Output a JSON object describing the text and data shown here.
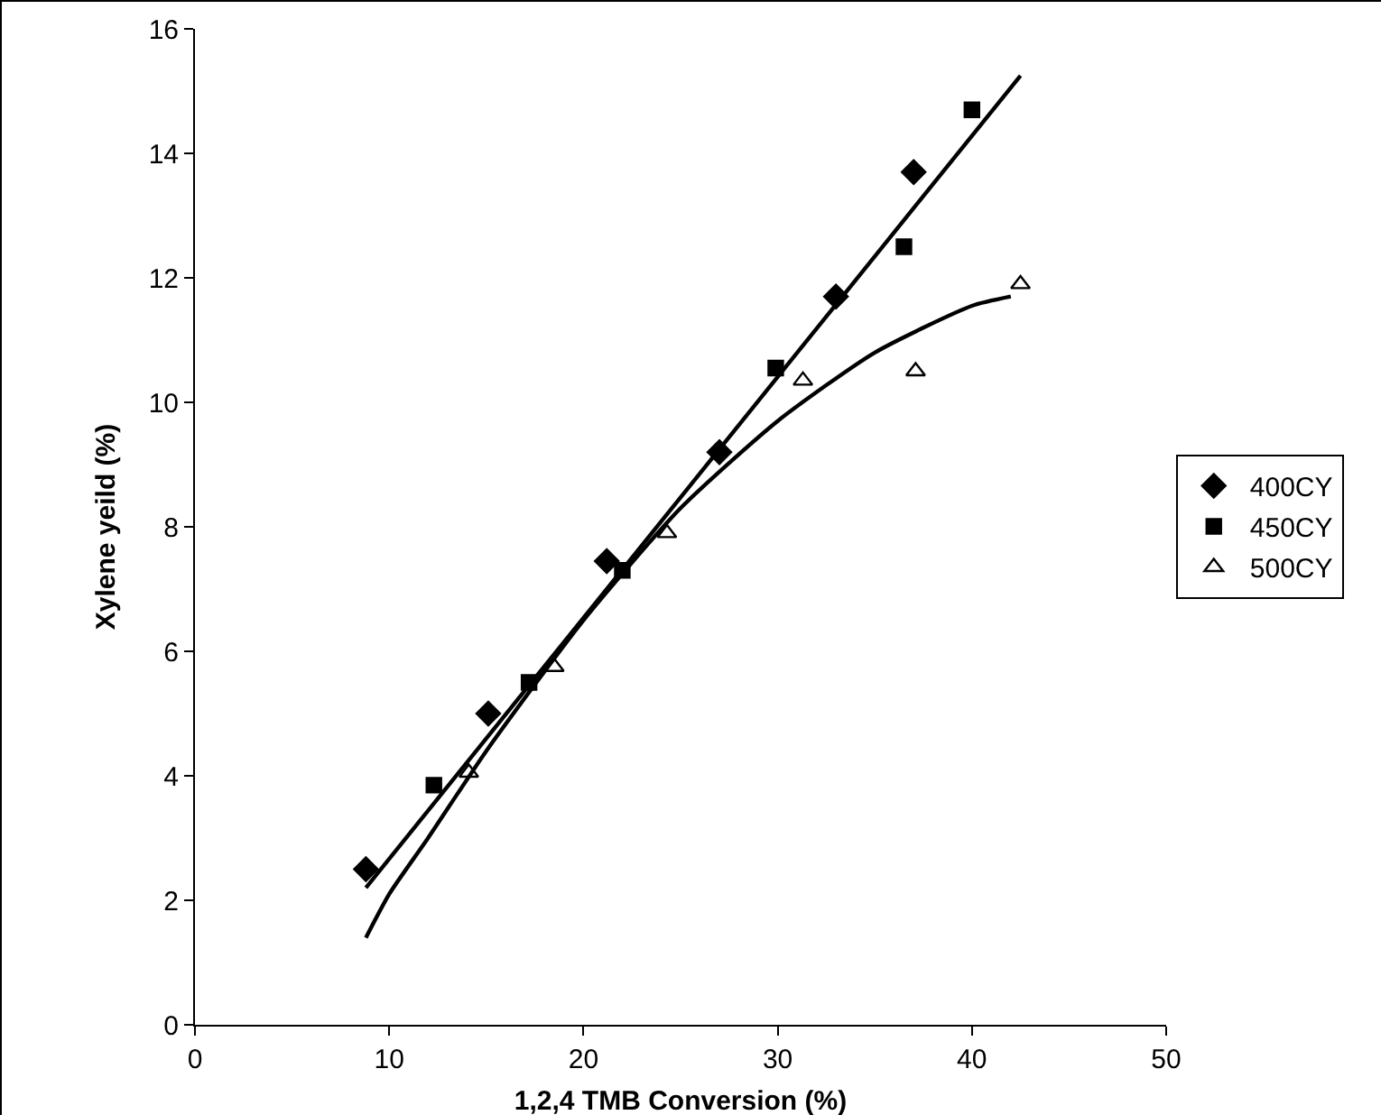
{
  "chart_data": {
    "type": "scatter",
    "xlabel": "1,2,4 TMB Conversion (%)",
    "ylabel": "Xylene yeild (%)",
    "xlim": [
      0,
      50
    ],
    "xticks": [
      0,
      10,
      20,
      30,
      40,
      50
    ],
    "ylim": [
      0,
      16
    ],
    "yticks": [
      0,
      2,
      4,
      6,
      8,
      10,
      12,
      14,
      16
    ],
    "grid": false,
    "legend": "right",
    "series": [
      {
        "name": "400CY",
        "color": "#000000",
        "marker": "diamond",
        "x": [
          8.8,
          15.1,
          21.2,
          27,
          33,
          37
        ],
        "values": [
          2.5,
          5.0,
          7.45,
          9.2,
          11.7,
          13.7
        ]
      },
      {
        "name": "450CY",
        "color": "#000000",
        "marker": "square",
        "x": [
          12.3,
          17.2,
          22,
          29.9,
          36.5,
          40
        ],
        "values": [
          3.85,
          5.5,
          7.3,
          10.55,
          12.5,
          14.7
        ]
      },
      {
        "name": "500CY",
        "color": "#000000",
        "marker": "triangle",
        "x": [
          14.1,
          18.5,
          24.3,
          31.3,
          37.1,
          42.5
        ],
        "values": [
          4.05,
          5.75,
          7.9,
          10.35,
          10.5,
          11.9
        ]
      },
      {
        "type": "line",
        "color": "#000000",
        "marker": "none",
        "x": [
          8.8,
          42.5
        ],
        "values": [
          2.2,
          15.25
        ]
      },
      {
        "type": "line",
        "color": "#000000",
        "marker": "none",
        "x": [
          8.8,
          10,
          12,
          15,
          20,
          25,
          30,
          35,
          40,
          42
        ],
        "values": [
          1.4,
          2.1,
          3.0,
          4.4,
          6.5,
          8.3,
          9.7,
          10.8,
          11.55,
          11.7
        ]
      }
    ]
  }
}
